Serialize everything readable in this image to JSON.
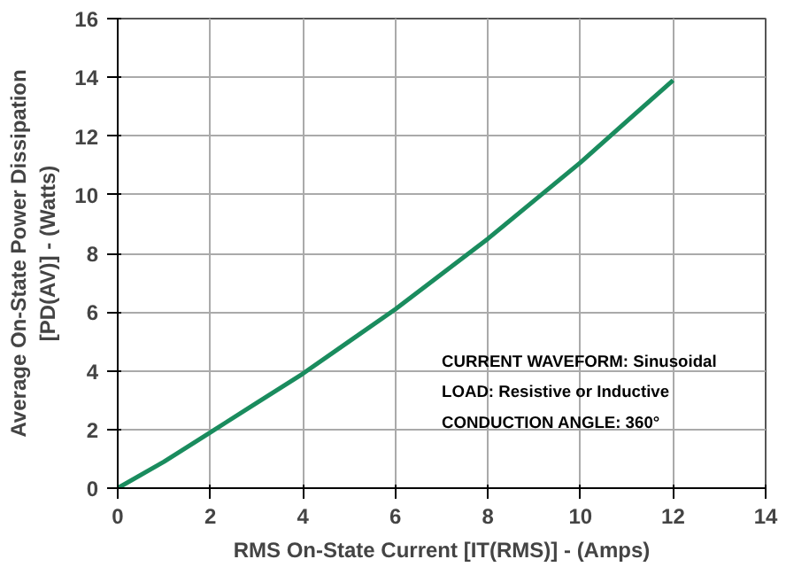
{
  "chart_data": {
    "type": "line",
    "xlabel": "RMS On-State Current [IT(RMS)] - (Amps)",
    "ylabel": "Average On-State Power Dissipation\n[PD(AV)] - (Watts)",
    "x": [
      0,
      1,
      2,
      3,
      4,
      5,
      6,
      7,
      8,
      9,
      10,
      11,
      12
    ],
    "series": [
      {
        "color": "#1a8c5e",
        "values": [
          0,
          0.9,
          1.9,
          2.9,
          3.9,
          5.0,
          6.1,
          7.3,
          8.5,
          9.8,
          11.1,
          12.5,
          13.9
        ]
      }
    ],
    "xlim": [
      0,
      14
    ],
    "ylim": [
      0,
      16
    ],
    "xticks": [
      0,
      2,
      4,
      6,
      8,
      10,
      12,
      14
    ],
    "yticks": [
      0,
      2,
      4,
      6,
      8,
      10,
      12,
      14,
      16
    ],
    "grid": true,
    "marker": "none",
    "line_style": "solid",
    "annotations": [
      "CURRENT WAVEFORM: Sinusoidal",
      "LOAD: Resistive or Inductive",
      "CONDUCTION ANGLE: 360°"
    ]
  }
}
